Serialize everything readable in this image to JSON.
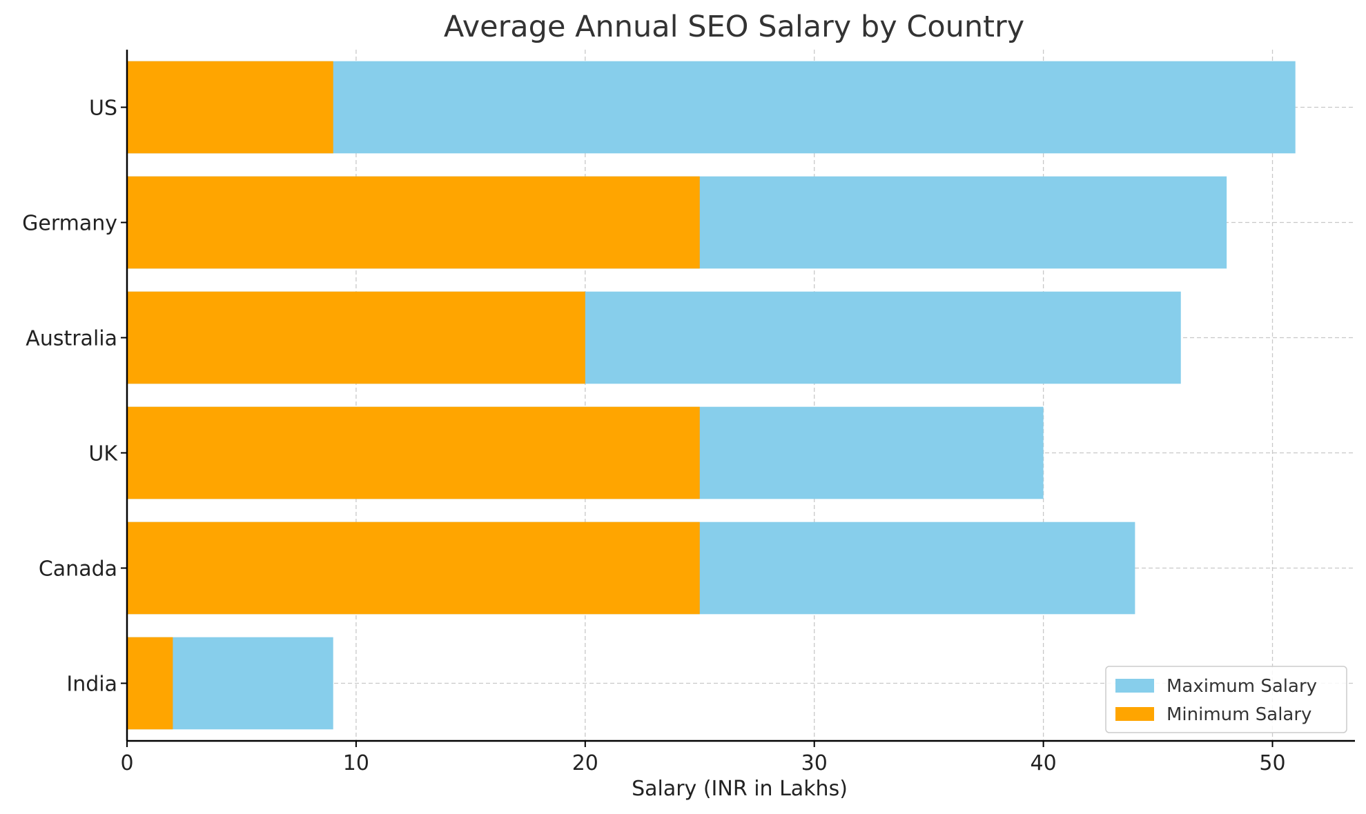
{
  "chart_data": {
    "type": "bar",
    "orientation": "horizontal",
    "title": "Average Annual SEO Salary by Country",
    "xlabel": "Salary (INR in Lakhs)",
    "ylabel": "",
    "categories": [
      "India",
      "Canada",
      "UK",
      "Australia",
      "Germany",
      "US"
    ],
    "series": [
      {
        "name": "Maximum Salary",
        "color": "#87CEEB",
        "values": [
          9,
          44,
          40,
          46,
          48,
          51
        ]
      },
      {
        "name": "Minimum Salary",
        "color": "#FFA500",
        "values": [
          2,
          25,
          25,
          20,
          25,
          9
        ]
      }
    ],
    "xlim": [
      0,
      53.6
    ],
    "xticks": [
      0,
      10,
      20,
      30,
      40,
      50
    ],
    "grid": true,
    "legend_position": "lower-right"
  }
}
